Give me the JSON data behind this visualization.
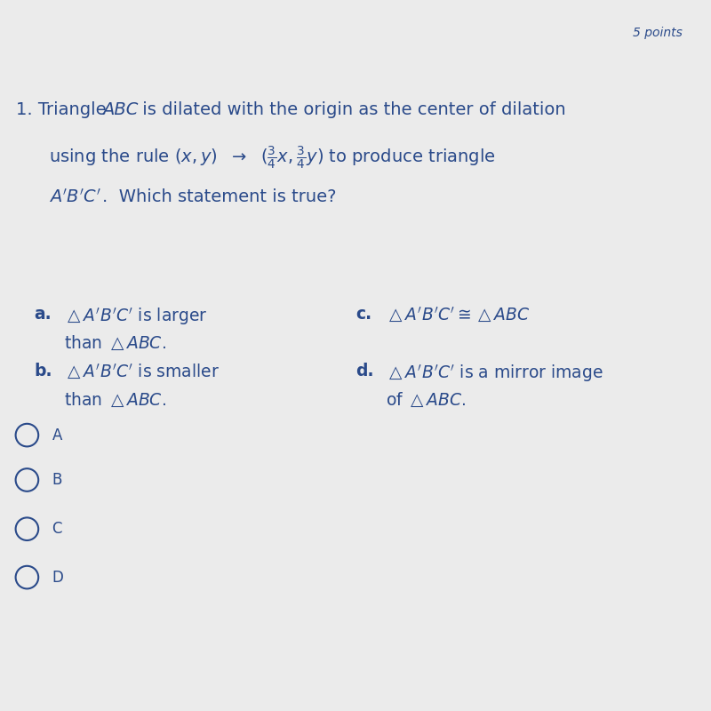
{
  "bg_color": "#ebebeb",
  "text_color": "#2a4a8a",
  "points_text": "5 points",
  "font_size_question": 14,
  "font_size_options": 13.5,
  "font_size_radio": 12,
  "font_size_points": 10,
  "radio_options": [
    "A",
    "B",
    "C",
    "D"
  ]
}
